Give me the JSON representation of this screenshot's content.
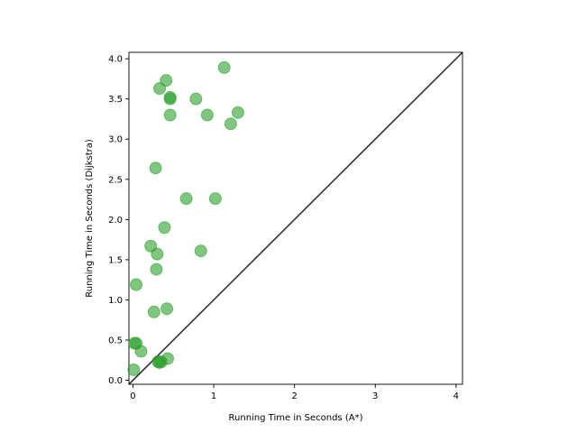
{
  "chart_data": {
    "type": "scatter",
    "title": "",
    "xlabel": "Running Time in Seconds (A*)",
    "ylabel": "Running Time in Seconds (Dijkstra)",
    "xlim": [
      -0.05,
      4.08
    ],
    "ylim": [
      -0.05,
      4.08
    ],
    "x_ticks": [
      0,
      1,
      2,
      3,
      4
    ],
    "x_tick_labels": [
      "0",
      "1",
      "2",
      "3",
      "4"
    ],
    "y_ticks": [
      0.0,
      0.5,
      1.0,
      1.5,
      2.0,
      2.5,
      3.0,
      3.5,
      4.0
    ],
    "y_tick_labels": [
      "0.0",
      "0.5",
      "1.0",
      "1.5",
      "2.0",
      "2.5",
      "3.0",
      "3.5",
      "4.0"
    ],
    "grid": false,
    "legend": "none",
    "reference_line": {
      "type": "y=x",
      "color": "#333333"
    },
    "marker_color": "#2ca02c",
    "series": [
      {
        "points": [
          [
            1.13,
            3.89
          ],
          [
            0.41,
            3.73
          ],
          [
            0.33,
            3.63
          ],
          [
            0.46,
            3.52
          ],
          [
            0.46,
            3.5
          ],
          [
            0.78,
            3.5
          ],
          [
            1.3,
            3.33
          ],
          [
            0.46,
            3.3
          ],
          [
            0.92,
            3.3
          ],
          [
            1.21,
            3.19
          ],
          [
            0.28,
            2.64
          ],
          [
            0.66,
            2.26
          ],
          [
            1.02,
            2.26
          ],
          [
            0.39,
            1.9
          ],
          [
            0.22,
            1.67
          ],
          [
            0.84,
            1.61
          ],
          [
            0.3,
            1.57
          ],
          [
            0.29,
            1.38
          ],
          [
            0.04,
            1.19
          ],
          [
            0.42,
            0.89
          ],
          [
            0.26,
            0.85
          ],
          [
            0.02,
            0.46
          ],
          [
            0.04,
            0.46
          ],
          [
            0.1,
            0.36
          ],
          [
            0.43,
            0.27
          ],
          [
            0.31,
            0.23
          ],
          [
            0.35,
            0.23
          ],
          [
            0.33,
            0.22
          ],
          [
            0.01,
            0.13
          ]
        ]
      }
    ]
  }
}
